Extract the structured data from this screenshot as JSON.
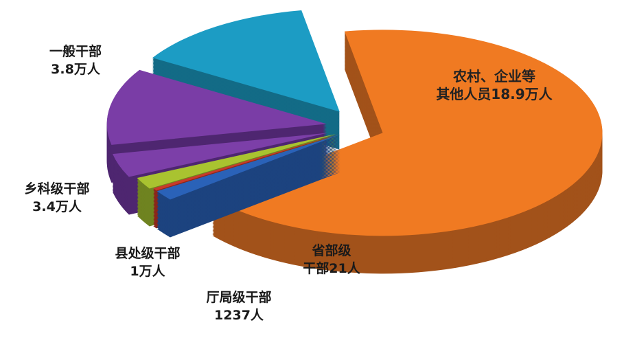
{
  "chart_data": {
    "type": "pie",
    "style": "3d-exploded",
    "unit": "万人",
    "slices": [
      {
        "name": "农村、企业等其他人员",
        "value": 18.9,
        "label_line1": "农村、企业等",
        "label_line2": "其他人员18.9万人",
        "color": "#F07A22",
        "side": "#A2521A"
      },
      {
        "name": "省部级干部",
        "value": 0.0021,
        "label_line1": "省部级",
        "label_line2": "干部21人",
        "color": "#2A62B8",
        "side": "#1C437F"
      },
      {
        "name": "红色细条",
        "value": 0.0021,
        "color": "#C83A2A",
        "side": "#8A261B"
      },
      {
        "name": "厅局级干部",
        "value": 0.1237,
        "label_line1": "厅局级干部",
        "label_line2": "1237人",
        "color": "#A9C330",
        "side": "#6F8320"
      },
      {
        "name": "县处级干部",
        "value": 1.0,
        "label_line1": "县处级干部",
        "label_line2": "1万人",
        "color": "#7C3FA8",
        "side": "#4E2670"
      },
      {
        "name": "乡科级干部",
        "value": 3.4,
        "label_line1": "乡科级干部",
        "label_line2": "3.4万人",
        "color": "#7A3DA6",
        "side": "#4E2670"
      },
      {
        "name": "一般干部",
        "value": 3.8,
        "label_line1": "一般干部",
        "label_line2": "3.8万人",
        "color": "#1C9CC4",
        "side": "#136B86"
      }
    ],
    "legend": "none"
  }
}
